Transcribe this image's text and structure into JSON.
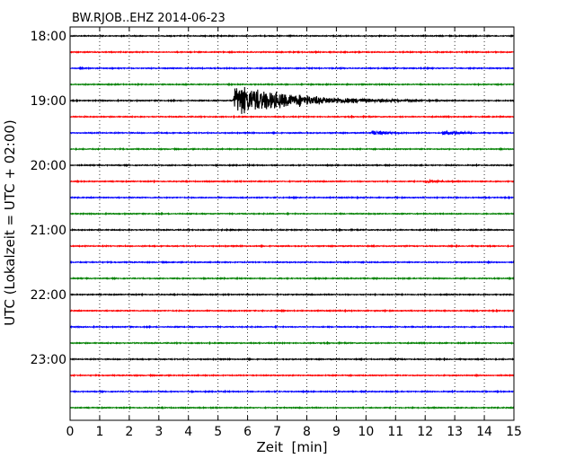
{
  "chart_data": {
    "type": "line",
    "title": "BW.RJOB..EHZ 2014-06-23",
    "xlabel": "Zeit  [min]",
    "ylabel": "UTC (Lokalzeit = UTC + 02:00)",
    "xlim": [
      0,
      15
    ],
    "x_ticks": [
      "0",
      "1",
      "2",
      "3",
      "4",
      "5",
      "6",
      "7",
      "8",
      "9",
      "10",
      "11",
      "12",
      "13",
      "14",
      "15"
    ],
    "y_ticks": [
      "18:00",
      "19:00",
      "20:00",
      "21:00",
      "22:00",
      "23:00"
    ],
    "grid": "vertical",
    "trace_start": "18:00",
    "trace_interval_minutes": 15,
    "trace_count": 24,
    "colors": [
      "#000000",
      "#ff0000",
      "#0000ff",
      "#008000"
    ],
    "events": [
      {
        "trace": 1,
        "time_min": 10.8,
        "amplitude": 0.15,
        "duration": 1.0
      },
      {
        "trace": 4,
        "time_min": 5.55,
        "amplitude": 22,
        "duration": 6.0
      },
      {
        "trace": 6,
        "time_min": 10.2,
        "amplitude": 4.0,
        "duration": 2.0
      },
      {
        "trace": 6,
        "time_min": 12.6,
        "amplitude": 3.6,
        "duration": 2.0
      },
      {
        "trace": 9,
        "time_min": 12.0,
        "amplitude": 2.8,
        "duration": 2.0
      },
      {
        "trace": 10,
        "time_min": 14.4,
        "amplitude": 0.6,
        "duration": 0.8
      },
      {
        "trace": 11,
        "time_min": 3.65,
        "amplitude": 0.5,
        "duration": 0.8
      },
      {
        "trace": 12,
        "time_min": 5.1,
        "amplitude": 0.8,
        "duration": 10
      },
      {
        "trace": 13,
        "time_min": 4.9,
        "amplitude": 0.6,
        "duration": 10
      },
      {
        "trace": 14,
        "time_min": 1.5,
        "amplitude": 0.35,
        "duration": 1.5
      },
      {
        "trace": 14,
        "time_min": 12.5,
        "amplitude": 0.35,
        "duration": 1.5
      },
      {
        "trace": 20,
        "time_min": 6.4,
        "amplitude": 0.7,
        "duration": 1.2
      },
      {
        "trace": 20,
        "time_min": 10.8,
        "amplitude": 1.6,
        "duration": 1.8
      },
      {
        "trace": 21,
        "time_min": 9.6,
        "amplitude": 0.4,
        "duration": 0.8
      }
    ]
  }
}
